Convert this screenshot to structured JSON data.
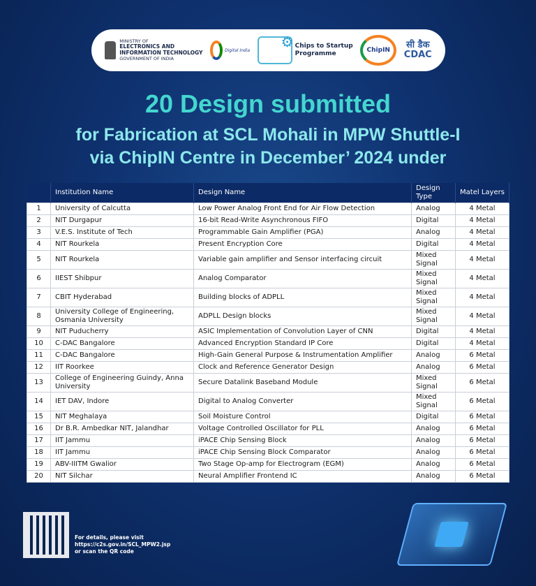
{
  "logos": {
    "meity": [
      "MINISTRY OF",
      "ELECTRONICS AND",
      "INFORMATION TECHNOLOGY",
      "GOVERNMENT OF INDIA"
    ],
    "digital_india": "Digital India",
    "c2s": [
      "Chips to Startup",
      "Programme"
    ],
    "chipin": "ChipIN",
    "cdac": [
      "सी डैक",
      "CDAC"
    ]
  },
  "title": "20 Design submitted",
  "subtitle": [
    "for Fabrication at SCL Mohali in MPW Shuttle-I",
    "via ChipIN Centre in December’ 2024 under"
  ],
  "table": {
    "headers": [
      "",
      "Institution Name",
      "Design Name",
      "Design Type",
      "Matel Layers"
    ],
    "rows": [
      [
        "1",
        "University of Calcutta",
        "Low Power Analog Front End for Air Flow Detection",
        "Analog",
        "4 Metal"
      ],
      [
        "2",
        "NIT Durgapur",
        "16-bit Read-Write Asynchronous FIFO",
        "Digital",
        "4 Metal"
      ],
      [
        "3",
        "V.E.S. Institute of Tech",
        "Programmable Gain Amplifier (PGA)",
        "Analog",
        "4 Metal"
      ],
      [
        "4",
        "NIT Rourkela",
        "Present Encryption Core",
        "Digital",
        "4 Metal"
      ],
      [
        "5",
        "NIT Rourkela",
        "Variable gain amplifier and Sensor interfacing circuit",
        "Mixed Signal",
        "4 Metal"
      ],
      [
        "6",
        "IIEST Shibpur",
        "Analog Comparator",
        "Mixed Signal",
        "4 Metal"
      ],
      [
        "7",
        "CBIT Hyderabad",
        "Building blocks of ADPLL",
        "Mixed Signal",
        "4 Metal"
      ],
      [
        "8",
        "University College of Engineering, Osmania University",
        "ADPLL Design blocks",
        "Mixed Signal",
        "4 Metal"
      ],
      [
        "9",
        "NIT Puducherry",
        "ASIC Implementation of Convolution Layer of CNN",
        "Digital",
        "4 Metal"
      ],
      [
        "10",
        "C-DAC Bangalore",
        "Advanced Encryption Standard IP Core",
        "Digital",
        "4 Metal"
      ],
      [
        "11",
        "C-DAC Bangalore",
        "High-Gain General Purpose  & Instrumentation Amplifier",
        "Analog",
        "6 Metal"
      ],
      [
        "12",
        "IIT Roorkee",
        "Clock and Reference Generator Design",
        "Analog",
        "6 Metal"
      ],
      [
        "13",
        "College of Engineering Guindy, Anna University",
        "Secure Datalink Baseband Module",
        "Mixed Signal",
        "6 Metal"
      ],
      [
        "14",
        "IET DAV, Indore",
        "Digital to Analog Converter",
        "Mixed Signal",
        "6 Metal"
      ],
      [
        "15",
        "NIT Meghalaya",
        "Soil Moisture Control",
        "Digital",
        "6 Metal"
      ],
      [
        "16",
        "Dr B.R. Ambedkar NIT, Jalandhar",
        "Voltage Controlled Oscillator for PLL",
        "Analog",
        "6 Metal"
      ],
      [
        "17",
        "IIT Jammu",
        "iPACE Chip Sensing Block",
        "Analog",
        "6 Metal"
      ],
      [
        "18",
        "IIT Jammu",
        "iPACE Chip Sensing Block Comparator",
        "Analog",
        "6 Metal"
      ],
      [
        "19",
        "ABV-IIITM Gwalior",
        "Two Stage Op-amp for Electrogram (EGM)",
        "Analog",
        "6 Metal"
      ],
      [
        "20",
        "NIT Silchar",
        "Neural Amplifier Frontend IC",
        "Analog",
        "6 Metal"
      ]
    ]
  },
  "footer": {
    "lines": [
      "For details, please visit",
      "https://c2s.gov.in/SCL_MPW2.jsp",
      "or scan the QR code"
    ]
  }
}
